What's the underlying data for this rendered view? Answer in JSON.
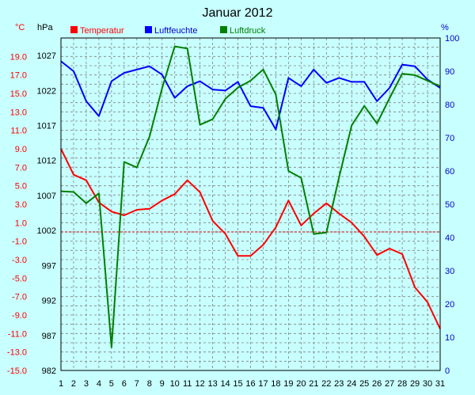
{
  "chart_data": {
    "type": "line",
    "title": "Januar 2012",
    "x": [
      1,
      2,
      3,
      4,
      5,
      6,
      7,
      8,
      9,
      10,
      11,
      12,
      13,
      14,
      15,
      16,
      17,
      18,
      19,
      20,
      21,
      22,
      23,
      24,
      25,
      26,
      27,
      28,
      29,
      30,
      31
    ],
    "x_ticks": [
      1,
      2,
      3,
      4,
      5,
      6,
      7,
      8,
      9,
      10,
      11,
      12,
      13,
      14,
      15,
      16,
      17,
      18,
      19,
      20,
      21,
      22,
      23,
      24,
      25,
      26,
      27,
      28,
      29,
      30,
      31
    ],
    "axes": {
      "temp": {
        "unit_label": "°C",
        "range": [
          -15.0,
          21.0
        ],
        "tick_values": [
          -15,
          -13,
          -11,
          -9,
          -7,
          -5,
          -3,
          -1,
          1,
          3,
          5,
          7,
          9,
          11,
          13,
          15,
          17,
          19
        ],
        "tick_labels": [
          "-15.0",
          "-13.0",
          "-11.0",
          "-9.0",
          "-7.0",
          "-5.0",
          "-3.0",
          "-1.0",
          "1.0",
          "3.0",
          "5.0",
          "7.0",
          "9.0",
          "11.0",
          "13.0",
          "15.0",
          "17.0",
          "19.0"
        ],
        "color": "#ff0000"
      },
      "pressure": {
        "unit_label": "hPa",
        "range": [
          982,
          1029.5
        ],
        "tick_values": [
          982,
          987,
          992,
          997,
          1002,
          1007,
          1012,
          1017,
          1022,
          1027
        ],
        "tick_labels": [
          "982",
          "987",
          "992",
          "997",
          "1002",
          "1007",
          "1012",
          "1017",
          "1022",
          "1027"
        ],
        "color": "#000000"
      },
      "humidity": {
        "unit_label": "%",
        "range": [
          0,
          100
        ],
        "tick_values": [
          0,
          10,
          20,
          30,
          40,
          50,
          60,
          70,
          80,
          90,
          100
        ],
        "tick_labels": [
          "0",
          "10",
          "20",
          "30",
          "40",
          "50",
          "60",
          "70",
          "80",
          "90",
          "100"
        ],
        "color": "#0000cc"
      }
    },
    "reference_line": {
      "axis": "temp",
      "value": 0,
      "color": "#cc0000"
    },
    "grid": true,
    "legend_position": "top",
    "series": [
      {
        "name": "Temperatur",
        "axis": "temp",
        "color": "#ff0000",
        "values": [
          9.0,
          6.2,
          5.6,
          3.2,
          2.2,
          1.8,
          2.4,
          2.5,
          3.4,
          4.1,
          5.6,
          4.3,
          1.2,
          -0.2,
          -2.6,
          -2.6,
          -1.4,
          0.5,
          3.4,
          0.7,
          2.0,
          3.1,
          2.0,
          1.0,
          -0.5,
          -2.5,
          -1.8,
          -2.4,
          -6.0,
          -7.6,
          -10.5
        ]
      },
      {
        "name": "Luftfeuchte",
        "axis": "humidity",
        "color": "#0000ff",
        "values": [
          93,
          90,
          81,
          76.5,
          87,
          89.5,
          90.5,
          91.5,
          89,
          82,
          85.5,
          87,
          84.5,
          84.2,
          86.8,
          79.5,
          79,
          72.5,
          88,
          85.5,
          90.5,
          86.5,
          88,
          86.8,
          86.8,
          81,
          85,
          92,
          91.5,
          87.5,
          85
        ]
      },
      {
        "name": "Luftdruck",
        "axis": "pressure",
        "color": "#008000",
        "values": [
          1007.6,
          1007.5,
          1005.9,
          1007.3,
          985.3,
          1011.8,
          1011.0,
          1015.4,
          1022.3,
          1028.3,
          1028.0,
          1017.1,
          1017.9,
          1020.8,
          1022.4,
          1023.4,
          1025.0,
          1021.4,
          1010.5,
          1009.5,
          1001.5,
          1001.7,
          1009.6,
          1017.0,
          1019.8,
          1017.3,
          1020.9,
          1024.4,
          1024.2,
          1023.4,
          1022.6
        ]
      }
    ]
  }
}
